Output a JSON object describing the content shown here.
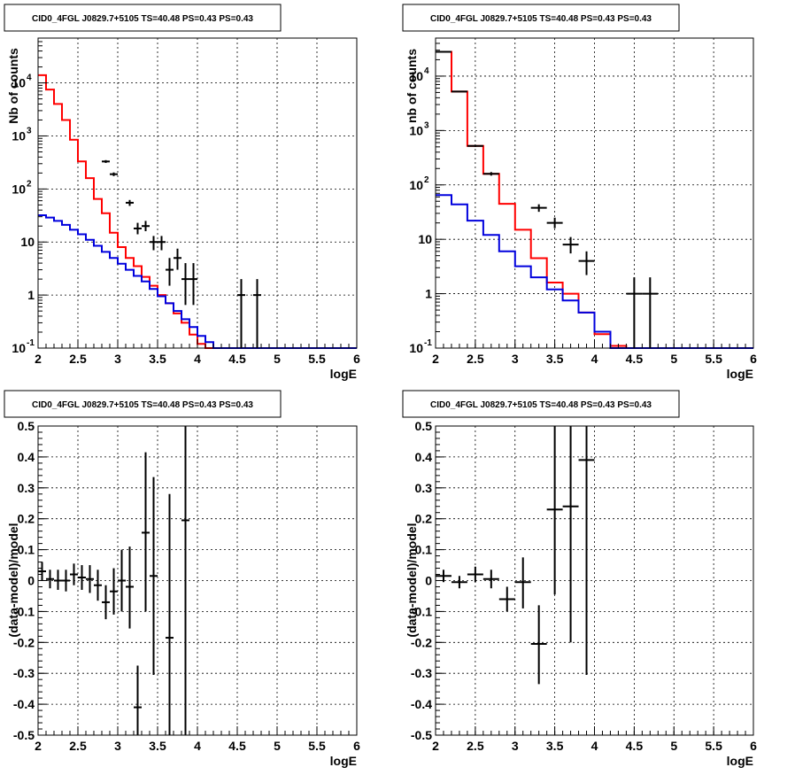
{
  "colors": {
    "model_total": "#ff0000",
    "model_background": "#0000dd",
    "data": "#000000"
  },
  "chart_data": [
    {
      "type": "line",
      "title": "CID0_4FGL J0829.7+5105 TS=40.48 PS=0.43 PS=0.43",
      "xlabel": "logE",
      "ylabel": "Nb of counts",
      "xlim": [
        2,
        6
      ],
      "ylim": [
        0.1,
        70000
      ],
      "yscale": "log",
      "grid": true,
      "x_ticks": [
        "2",
        "2.5",
        "3",
        "3.5",
        "4",
        "4.5",
        "5",
        "5.5",
        "6"
      ],
      "y_ticks": [
        {
          "v": 0.1,
          "base": "10",
          "exp": "-1"
        },
        {
          "v": 1,
          "label": "1"
        },
        {
          "v": 10,
          "label": "10"
        },
        {
          "v": 100,
          "base": "10",
          "exp": "2"
        },
        {
          "v": 1000,
          "base": "10",
          "exp": "3"
        },
        {
          "v": 10000,
          "base": "10",
          "exp": "4"
        }
      ],
      "bin_width": 0.1,
      "series": [
        {
          "kind": "hist",
          "color_key": "model_total",
          "values": [
            14000,
            7500,
            4000,
            2000,
            850,
            330,
            160,
            65,
            35,
            15,
            8,
            5,
            3.5,
            2.2,
            1.5,
            1.0,
            0.7,
            0.45,
            0.3,
            0.18,
            0.12,
            0.1,
            0.1,
            0.1,
            0.1,
            0.1,
            0.1,
            0.1,
            0.1,
            0.1,
            0.1,
            0.1,
            0.1,
            0.1,
            0.1,
            0.1,
            0.1,
            0.1,
            0.1,
            0.1
          ]
        },
        {
          "kind": "hist",
          "color_key": "model_background",
          "values": [
            32,
            29,
            25,
            21,
            17,
            14,
            11,
            8.5,
            6.5,
            5,
            3.9,
            3.0,
            2.3,
            1.8,
            1.3,
            0.95,
            0.7,
            0.5,
            0.35,
            0.25,
            0.17,
            0.13,
            0.1,
            0.1,
            0.1,
            0.1,
            0.1,
            0.1,
            0.1,
            0.1,
            0.1,
            0.1,
            0.1,
            0.1,
            0.1,
            0.1,
            0.1,
            0.1,
            0.1,
            0.1
          ]
        },
        {
          "kind": "points",
          "color_key": "data",
          "points": [
            {
              "x": 2.85,
              "y": 330,
              "lo": 310,
              "hi": 350
            },
            {
              "x": 2.95,
              "y": 190,
              "lo": 175,
              "hi": 205
            },
            {
              "x": 3.15,
              "y": 55,
              "lo": 48,
              "hi": 62
            },
            {
              "x": 3.25,
              "y": 18,
              "lo": 14,
              "hi": 23
            },
            {
              "x": 3.35,
              "y": 20,
              "lo": 16,
              "hi": 25
            },
            {
              "x": 3.45,
              "y": 10,
              "lo": 7,
              "hi": 13
            },
            {
              "x": 3.55,
              "y": 10,
              "lo": 7,
              "hi": 13
            },
            {
              "x": 3.65,
              "y": 3,
              "lo": 1.5,
              "hi": 5
            },
            {
              "x": 3.75,
              "y": 5,
              "lo": 3,
              "hi": 7.5
            },
            {
              "x": 3.85,
              "y": 2,
              "lo": 0.65,
              "hi": 4
            },
            {
              "x": 3.95,
              "y": 2,
              "lo": 0.65,
              "hi": 4
            },
            {
              "x": 4.55,
              "y": 1,
              "lo": 0.1,
              "hi": 2
            },
            {
              "x": 4.75,
              "y": 1,
              "lo": 0.1,
              "hi": 2
            }
          ]
        }
      ]
    },
    {
      "type": "line",
      "title": "CID0_4FGL J0829.7+5105 TS=40.48 PS=0.43 PS=0.43",
      "xlabel": "logE",
      "ylabel": "nb of counts",
      "xlim": [
        2,
        6
      ],
      "ylim": [
        0.1,
        50000
      ],
      "yscale": "log",
      "grid": true,
      "x_ticks": [
        "2",
        "2.5",
        "3",
        "3.5",
        "4",
        "4.5",
        "5",
        "5.5",
        "6"
      ],
      "y_ticks": [
        {
          "v": 0.1,
          "base": "10",
          "exp": "-1"
        },
        {
          "v": 1,
          "label": "1"
        },
        {
          "v": 10,
          "label": "10"
        },
        {
          "v": 100,
          "base": "10",
          "exp": "2"
        },
        {
          "v": 1000,
          "base": "10",
          "exp": "3"
        },
        {
          "v": 10000,
          "base": "10",
          "exp": "4"
        }
      ],
      "bin_width": 0.2,
      "series": [
        {
          "kind": "hist",
          "color_key": "model_total",
          "values": [
            28000,
            5200,
            520,
            160,
            45,
            15,
            4.5,
            1.6,
            1.0,
            0.45,
            0.18,
            0.11,
            0.1,
            0.1,
            0.1,
            0.1,
            0.1,
            0.1,
            0.1,
            0.1
          ]
        },
        {
          "kind": "hist",
          "color_key": "model_background",
          "values": [
            65,
            44,
            22,
            12,
            6,
            3.2,
            2.0,
            1.2,
            0.75,
            0.45,
            0.2,
            0.1,
            0.1,
            0.1,
            0.1,
            0.1,
            0.1,
            0.1,
            0.1,
            0.1
          ]
        },
        {
          "kind": "points",
          "color_key": "data",
          "points": [
            {
              "x": 2.1,
              "y": 28000,
              "lo": 27500,
              "hi": 28500
            },
            {
              "x": 2.3,
              "y": 5200,
              "lo": 5100,
              "hi": 5300
            },
            {
              "x": 2.5,
              "y": 520,
              "lo": 500,
              "hi": 545
            },
            {
              "x": 2.7,
              "y": 160,
              "lo": 148,
              "hi": 172
            },
            {
              "x": 3.3,
              "y": 38,
              "lo": 32,
              "hi": 44
            },
            {
              "x": 3.5,
              "y": 20,
              "lo": 16,
              "hi": 25
            },
            {
              "x": 3.7,
              "y": 8,
              "lo": 5.5,
              "hi": 11
            },
            {
              "x": 3.9,
              "y": 4,
              "lo": 2.2,
              "hi": 6
            },
            {
              "x": 4.5,
              "y": 1,
              "lo": 0.1,
              "hi": 2
            },
            {
              "x": 4.7,
              "y": 1,
              "lo": 0.1,
              "hi": 2
            }
          ]
        }
      ]
    },
    {
      "type": "scatter",
      "title": "CID0_4FGL J0829.7+5105 TS=40.48 PS=0.43 PS=0.43",
      "xlabel": "logE",
      "ylabel": "(data-model)/model",
      "xlim": [
        2,
        6
      ],
      "ylim": [
        -0.5,
        0.5
      ],
      "grid": true,
      "x_ticks": [
        "2",
        "2.5",
        "3",
        "3.5",
        "4",
        "4.5",
        "5",
        "5.5",
        "6"
      ],
      "y_ticks": [
        "-0.5",
        "-0.4",
        "-0.3",
        "-0.2",
        "-0.1",
        "0",
        "0.1",
        "0.2",
        "0.3",
        "0.4",
        "0.5"
      ],
      "bin_width": 0.1,
      "series": [
        {
          "kind": "points",
          "color_key": "data",
          "points": [
            {
              "x": 2.05,
              "y": 0.03,
              "lo": 0.0,
              "hi": 0.06
            },
            {
              "x": 2.15,
              "y": 0.005,
              "lo": -0.025,
              "hi": 0.035
            },
            {
              "x": 2.25,
              "y": 0.0,
              "lo": -0.03,
              "hi": 0.035
            },
            {
              "x": 2.35,
              "y": 0.0,
              "lo": -0.035,
              "hi": 0.035
            },
            {
              "x": 2.45,
              "y": 0.02,
              "lo": -0.015,
              "hi": 0.055
            },
            {
              "x": 2.55,
              "y": 0.01,
              "lo": -0.03,
              "hi": 0.05
            },
            {
              "x": 2.65,
              "y": 0.005,
              "lo": -0.04,
              "hi": 0.05
            },
            {
              "x": 2.75,
              "y": -0.015,
              "lo": -0.065,
              "hi": 0.035
            },
            {
              "x": 2.85,
              "y": -0.07,
              "lo": -0.125,
              "hi": -0.015
            },
            {
              "x": 2.95,
              "y": -0.035,
              "lo": -0.11,
              "hi": 0.04
            },
            {
              "x": 3.05,
              "y": 0.0,
              "lo": -0.1,
              "hi": 0.1
            },
            {
              "x": 3.15,
              "y": -0.02,
              "lo": -0.155,
              "hi": 0.11
            },
            {
              "x": 3.25,
              "y": -0.41,
              "lo": -0.5,
              "hi": -0.275
            },
            {
              "x": 3.35,
              "y": 0.155,
              "lo": -0.1,
              "hi": 0.415
            },
            {
              "x": 3.45,
              "y": 0.015,
              "lo": -0.305,
              "hi": 0.335
            },
            {
              "x": 3.65,
              "y": -0.185,
              "lo": -0.5,
              "hi": 0.28
            },
            {
              "x": 3.85,
              "y": 0.195,
              "lo": -0.5,
              "hi": 0.5
            }
          ]
        }
      ]
    },
    {
      "type": "scatter",
      "title": "CID0_4FGL J0829.7+5105 TS=40.48 PS=0.43 PS=0.43",
      "xlabel": "logE",
      "ylabel": "(data-model)/model",
      "xlim": [
        2,
        6
      ],
      "ylim": [
        -0.5,
        0.5
      ],
      "grid": true,
      "x_ticks": [
        "2",
        "2.5",
        "3",
        "3.5",
        "4",
        "4.5",
        "5",
        "5.5",
        "6"
      ],
      "y_ticks": [
        "-0.5",
        "-0.4",
        "-0.3",
        "-0.2",
        "-0.1",
        "0",
        "0.1",
        "0.2",
        "0.3",
        "0.4",
        "0.5"
      ],
      "bin_width": 0.2,
      "series": [
        {
          "kind": "points",
          "color_key": "data",
          "points": [
            {
              "x": 2.1,
              "y": 0.015,
              "lo": -0.005,
              "hi": 0.035
            },
            {
              "x": 2.3,
              "y": -0.005,
              "lo": -0.025,
              "hi": 0.015
            },
            {
              "x": 2.5,
              "y": 0.02,
              "lo": -0.005,
              "hi": 0.045
            },
            {
              "x": 2.7,
              "y": 0.005,
              "lo": -0.025,
              "hi": 0.035
            },
            {
              "x": 2.9,
              "y": -0.06,
              "lo": -0.1,
              "hi": -0.02
            },
            {
              "x": 3.1,
              "y": -0.005,
              "lo": -0.09,
              "hi": 0.075
            },
            {
              "x": 3.3,
              "y": -0.205,
              "lo": -0.335,
              "hi": -0.08
            },
            {
              "x": 3.5,
              "y": 0.23,
              "lo": -0.045,
              "hi": 0.5
            },
            {
              "x": 3.7,
              "y": 0.24,
              "lo": -0.2,
              "hi": 0.5
            },
            {
              "x": 3.9,
              "y": 0.39,
              "lo": -0.305,
              "hi": 0.5
            }
          ]
        }
      ]
    }
  ]
}
